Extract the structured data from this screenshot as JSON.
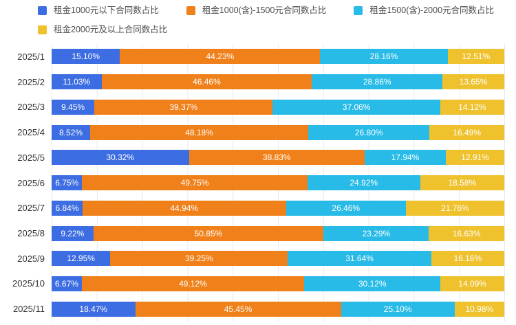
{
  "legend": {
    "items": [
      {
        "label": "租金1000元以下合同数占比",
        "color": "#3d6de2"
      },
      {
        "label": "租金1000(含)-1500元合同数占比",
        "color": "#f0811a"
      },
      {
        "label": "租金1500(含)-2000元合同数占比",
        "color": "#28bbe8"
      },
      {
        "label": "租金2000元及以上合同数占比",
        "color": "#efc22d"
      }
    ]
  },
  "chart_data": {
    "type": "bar",
    "orientation": "horizontal",
    "stacked": true,
    "title": "",
    "xlabel": "",
    "ylabel": "",
    "xlim": [
      0,
      100
    ],
    "grid": {
      "vertical_lines_every_percent": 10,
      "color": "#e8e9eb"
    },
    "legend_position": "top",
    "categories": [
      "2025/1",
      "2025/2",
      "2025/3",
      "2025/4",
      "2025/5",
      "2025/6",
      "2025/7",
      "2025/8",
      "2025/9",
      "2025/10",
      "2025/11"
    ],
    "series": [
      {
        "name": "租金1000元以下合同数占比",
        "color": "#3d6de2",
        "values": [
          15.1,
          11.03,
          9.45,
          8.52,
          30.32,
          6.75,
          6.84,
          9.22,
          12.95,
          6.67,
          18.47
        ],
        "labels": [
          "15.10%",
          "11.03%",
          "9.45%",
          "8.52%",
          "30.32%",
          "6.75%",
          "6.84%",
          "9.22%",
          "12.95%",
          "6.67%",
          "18.47%"
        ]
      },
      {
        "name": "租金1000(含)-1500元合同数占比",
        "color": "#f0811a",
        "values": [
          44.23,
          46.46,
          39.37,
          48.18,
          38.83,
          49.75,
          44.94,
          50.85,
          39.25,
          49.12,
          45.45
        ],
        "labels": [
          "44.23%",
          "46.46%",
          "39.37%",
          "48.18%",
          "38.83%",
          "49.75%",
          "44.94%",
          "50.85%",
          "39.25%",
          "49.12%",
          "45.45%"
        ]
      },
      {
        "name": "租金1500(含)-2000元合同数占比",
        "color": "#28bbe8",
        "values": [
          28.16,
          28.86,
          37.06,
          26.8,
          17.94,
          24.92,
          26.46,
          23.29,
          31.64,
          30.12,
          25.1
        ],
        "labels": [
          "28.16%",
          "28.86%",
          "37.06%",
          "26.80%",
          "17.94%",
          "24.92%",
          "26.46%",
          "23.29%",
          "31.64%",
          "30.12%",
          "25.10%"
        ]
      },
      {
        "name": "租金2000元及以上合同数占比",
        "color": "#efc22d",
        "values": [
          12.51,
          13.65,
          14.12,
          16.49,
          12.91,
          18.58,
          21.76,
          16.63,
          16.16,
          14.09,
          10.98
        ],
        "labels": [
          "12.51%",
          "13.65%",
          "14.12%",
          "16.49%",
          "12.91%",
          "18.58%",
          "21.76%",
          "16.63%",
          "16.16%",
          "14.09%",
          "10.98%"
        ]
      }
    ],
    "value_label_style": "white text centered inside each segment"
  }
}
